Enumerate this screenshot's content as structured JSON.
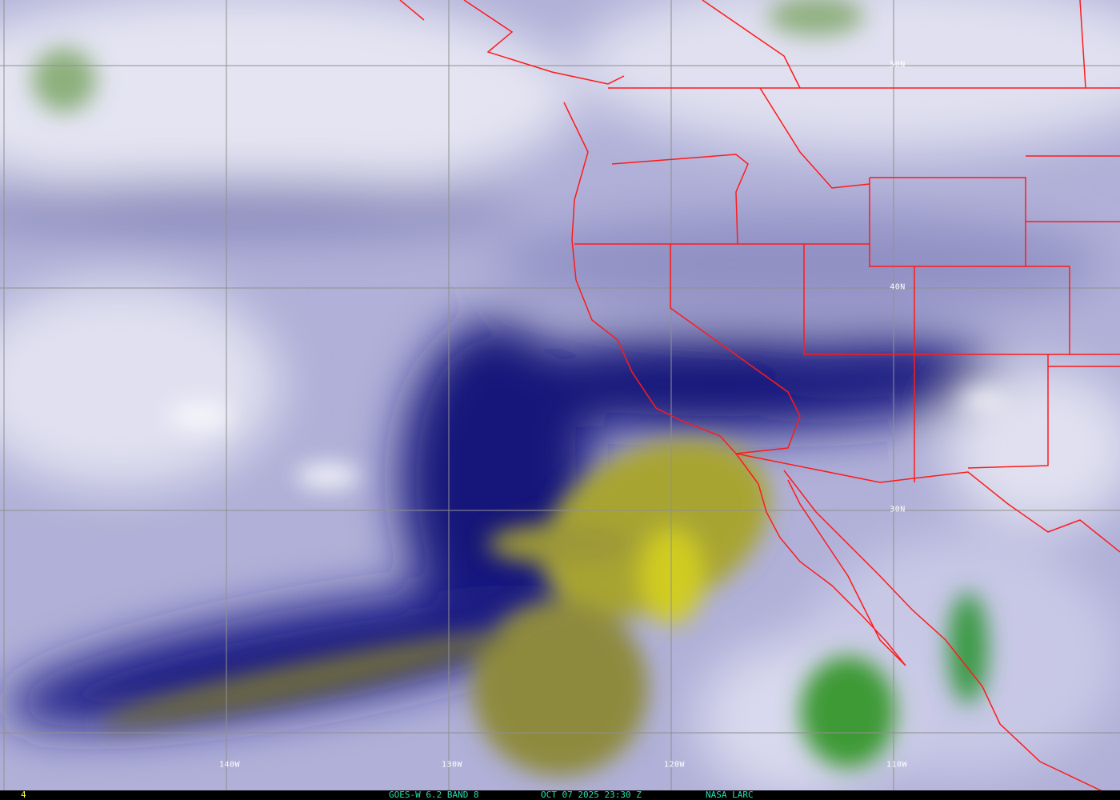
{
  "image": {
    "satellite": "GOES-W",
    "band_label": "GOES-W 6.2 BAND 8",
    "datetime_label": "OCT 07 2025 23:30 Z",
    "credit": "NASA LARC",
    "frame_number": "4"
  },
  "grid": {
    "longitude_labels": [
      "140W",
      "130W",
      "120W",
      "110W"
    ],
    "latitude_labels": [
      "50N",
      "40N",
      "30N"
    ]
  },
  "colors": {
    "border": "#ff1a1a",
    "grid": "#909090",
    "footer_text": "#20e0b0",
    "frame_number": "#ffff40",
    "dry": "#a8a430",
    "moist": "#d8d8ec",
    "mid": "#1a1a80",
    "cloud_top": "#4a9a3a"
  }
}
